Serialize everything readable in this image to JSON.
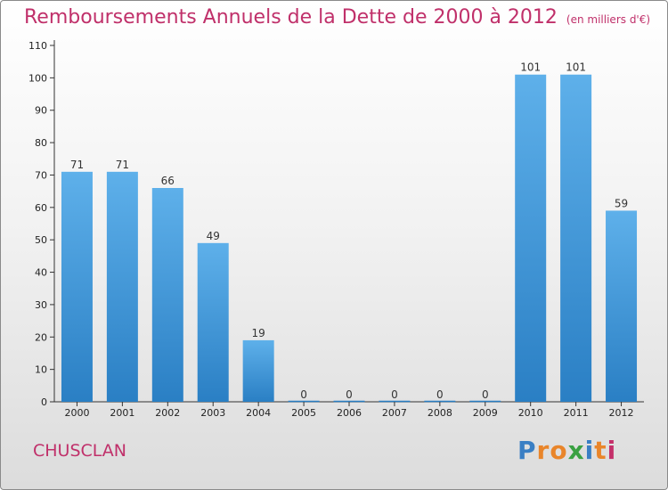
{
  "chart_data": {
    "type": "bar",
    "title": "Remboursements Annuels de la Dette de 2000 à 2012",
    "subtitle": "(en milliers d'€)",
    "categories": [
      "2000",
      "2001",
      "2002",
      "2003",
      "2004",
      "2005",
      "2006",
      "2007",
      "2008",
      "2009",
      "2010",
      "2011",
      "2012"
    ],
    "values": [
      71,
      71,
      66,
      49,
      19,
      0,
      0,
      0,
      0,
      0,
      101,
      101,
      59
    ],
    "ylim": [
      0,
      110
    ],
    "yticks": [
      0,
      10,
      20,
      30,
      40,
      50,
      60,
      70,
      80,
      90,
      100,
      110
    ],
    "xlabel": "",
    "ylabel": "",
    "grid": false,
    "bar_color_top": "#5eb0ea",
    "bar_color_bottom": "#2a7fc4"
  },
  "footer": {
    "place": "CHUSCLAN",
    "brand": "Proxiti",
    "brand_colors": [
      "#3a7fc4",
      "#e9852a",
      "#e9852a",
      "#3aa142",
      "#3a7fc4",
      "#e9852a",
      "#c4306a"
    ]
  }
}
